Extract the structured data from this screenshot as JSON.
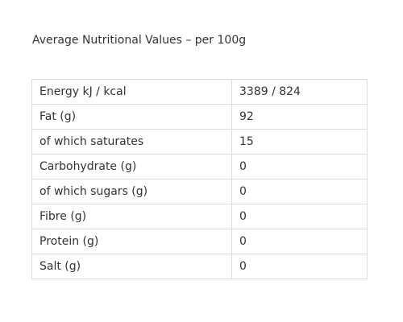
{
  "header": {
    "title": "Average Nutritional Values – per 100g"
  },
  "table": {
    "rows": [
      [
        "Energy kJ / kcal",
        "3389 / 824"
      ],
      [
        "Fat (g)",
        "92"
      ],
      [
        "of which saturates",
        "15"
      ],
      [
        "Carbohydrate (g)",
        "0"
      ],
      [
        "of which sugars (g)",
        "0"
      ],
      [
        "Fibre (g)",
        "0"
      ],
      [
        "Protein (g)",
        "0"
      ],
      [
        "Salt (g)",
        "0"
      ]
    ]
  }
}
